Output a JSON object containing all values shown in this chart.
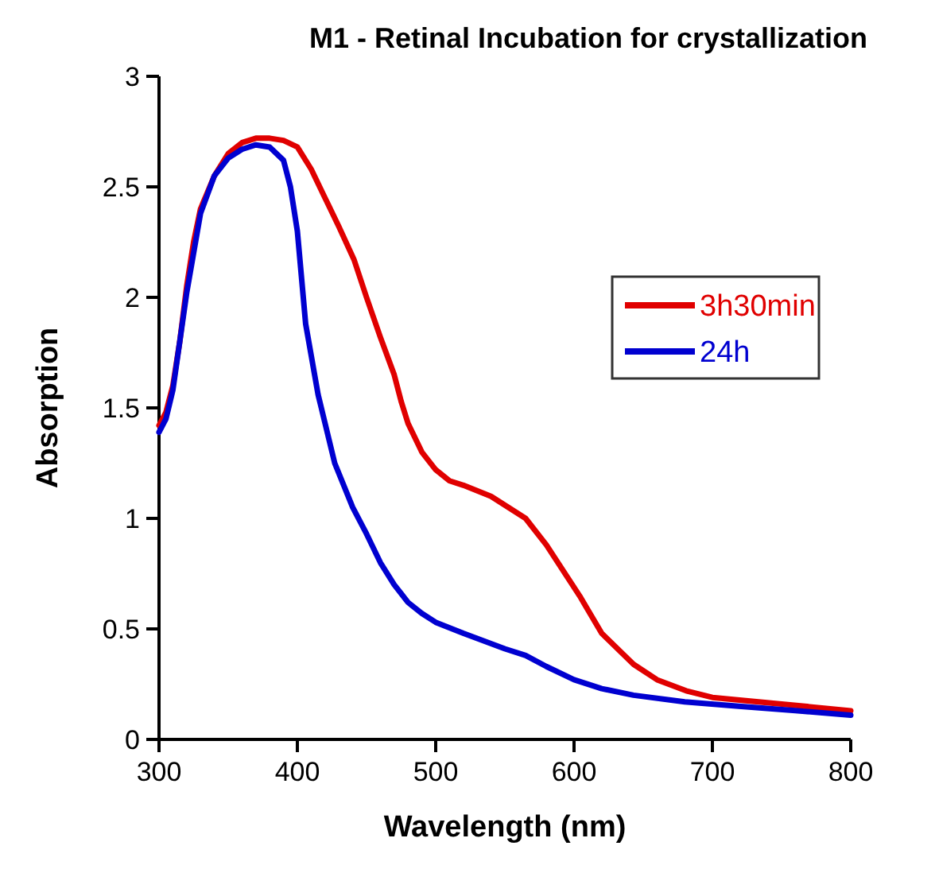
{
  "chart_data": {
    "type": "line",
    "title": "M1 - Retinal Incubation for crystallization",
    "xlabel": "Wavelength (nm)",
    "ylabel": "Absorption",
    "xlim": [
      300,
      800
    ],
    "xticks": [
      300,
      400,
      500,
      600,
      700,
      800
    ],
    "ylim": [
      0,
      3
    ],
    "yticks": [
      0,
      0.5,
      1,
      1.5,
      2,
      2.5,
      3
    ],
    "legend": "top right",
    "grid": false,
    "marker": "none",
    "line_style": "solid",
    "series": [
      {
        "name": "3h30min",
        "color": "#e00000",
        "x": [
          300,
          305,
          310,
          315,
          320,
          325,
          330,
          340,
          350,
          360,
          370,
          380,
          390,
          400,
          410,
          420,
          430,
          441,
          450,
          460,
          470,
          475,
          480,
          490,
          500,
          510,
          520,
          540,
          565,
          580,
          604,
          620,
          643,
          660,
          681,
          700,
          750,
          800
        ],
        "values": [
          1.42,
          1.48,
          1.6,
          1.8,
          2.05,
          2.25,
          2.4,
          2.55,
          2.65,
          2.7,
          2.72,
          2.72,
          2.71,
          2.68,
          2.58,
          2.45,
          2.32,
          2.17,
          2.0,
          1.82,
          1.65,
          1.53,
          1.43,
          1.3,
          1.22,
          1.17,
          1.15,
          1.1,
          1.0,
          0.88,
          0.65,
          0.48,
          0.34,
          0.27,
          0.22,
          0.19,
          0.16,
          0.13
        ]
      },
      {
        "name": "24h",
        "color": "#0000d0",
        "x": [
          300,
          305,
          310,
          320,
          330,
          340,
          350,
          360,
          370,
          380,
          390,
          395,
          400,
          406,
          415,
          427,
          440,
          450,
          460,
          470,
          480,
          490,
          500,
          520,
          550,
          565,
          580,
          600,
          620,
          643,
          680,
          719,
          760,
          800
        ],
        "values": [
          1.39,
          1.45,
          1.58,
          2.02,
          2.38,
          2.55,
          2.63,
          2.67,
          2.69,
          2.68,
          2.62,
          2.5,
          2.3,
          1.88,
          1.56,
          1.25,
          1.05,
          0.93,
          0.8,
          0.7,
          0.62,
          0.57,
          0.53,
          0.48,
          0.41,
          0.38,
          0.33,
          0.27,
          0.23,
          0.2,
          0.17,
          0.15,
          0.13,
          0.11
        ]
      }
    ]
  }
}
